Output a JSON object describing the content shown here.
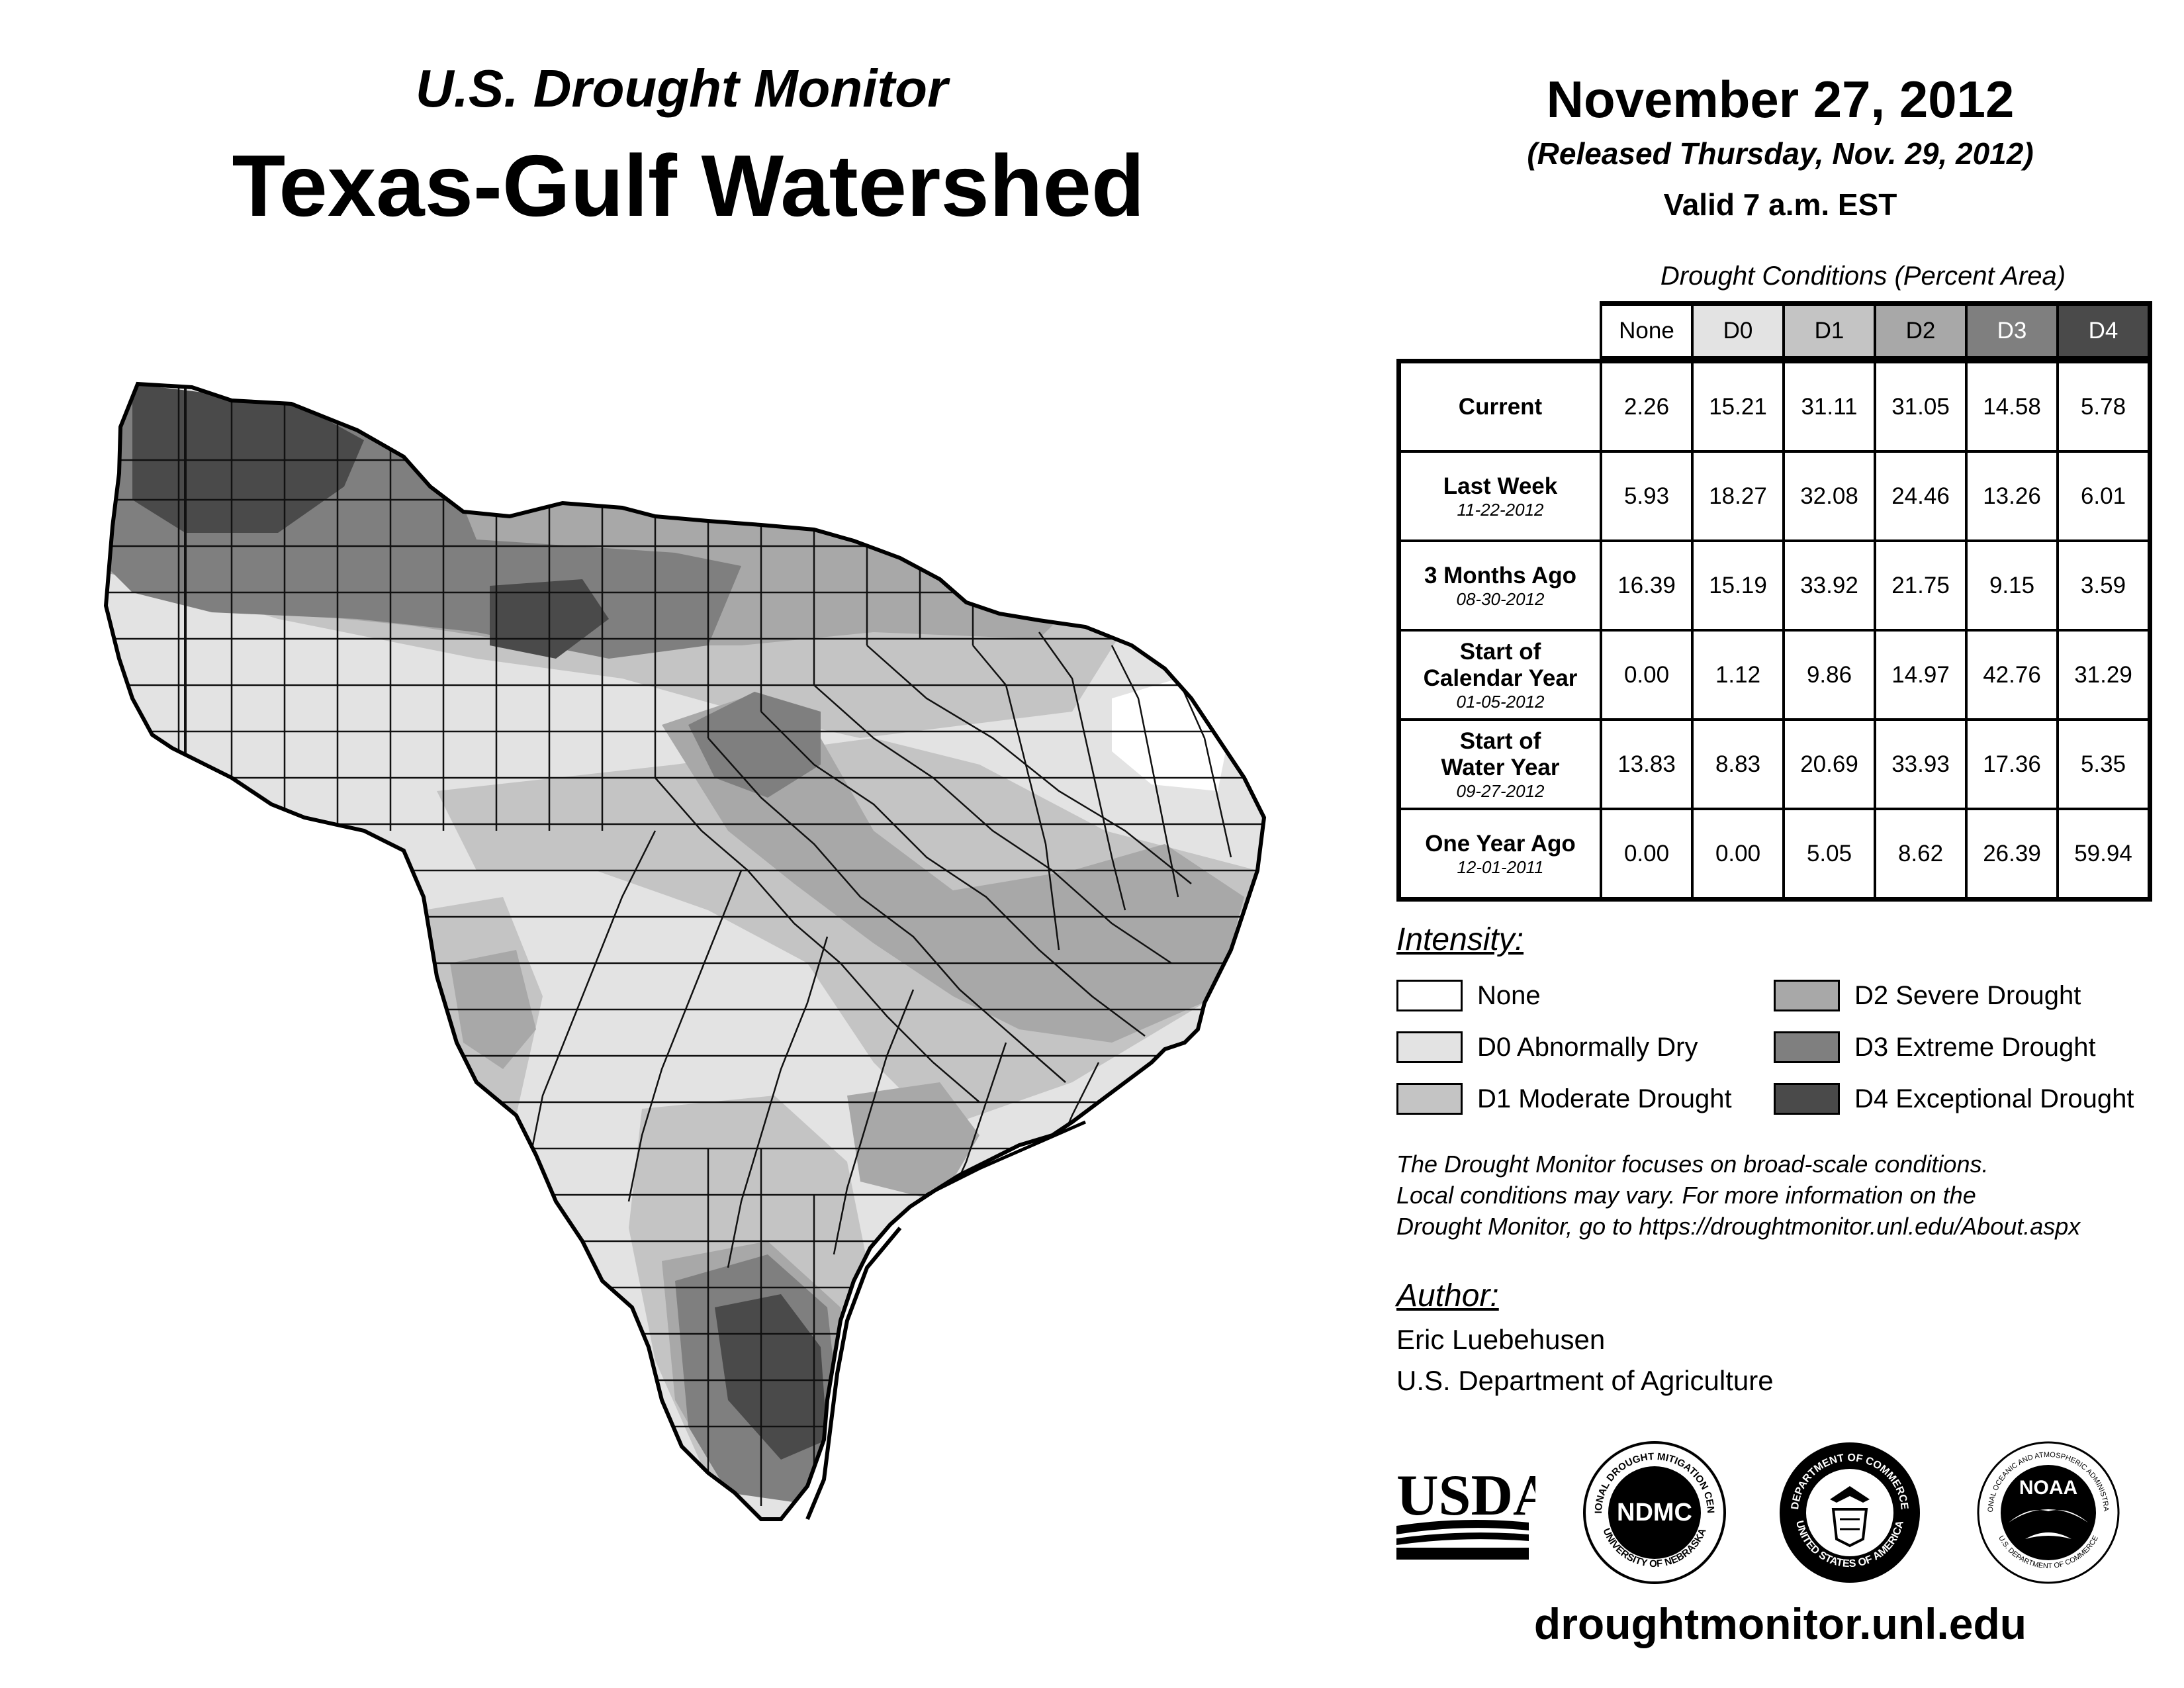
{
  "header": {
    "subtitle": "U.S. Drought Monitor",
    "title": "Texas-Gulf Watershed",
    "date": "November 27, 2012",
    "released": "(Released Thursday, Nov. 29, 2012)",
    "valid": "Valid 7 a.m. EST"
  },
  "table": {
    "caption": "Drought Conditions (Percent Area)",
    "columns": [
      "None",
      "D0",
      "D1",
      "D2",
      "D3",
      "D4"
    ],
    "rows": [
      {
        "label": "Current",
        "date": "",
        "values": [
          "2.26",
          "15.21",
          "31.11",
          "31.05",
          "14.58",
          "5.78"
        ]
      },
      {
        "label": "Last Week",
        "date": "11-22-2012",
        "values": [
          "5.93",
          "18.27",
          "32.08",
          "24.46",
          "13.26",
          "6.01"
        ]
      },
      {
        "label": "3 Months Ago",
        "date": "08-30-2012",
        "values": [
          "16.39",
          "15.19",
          "33.92",
          "21.75",
          "9.15",
          "3.59"
        ]
      },
      {
        "label": "Start of Calendar Year",
        "date": "01-05-2012",
        "values": [
          "0.00",
          "1.12",
          "9.86",
          "14.97",
          "42.76",
          "31.29"
        ]
      },
      {
        "label": "Start of Water Year",
        "date": "09-27-2012",
        "values": [
          "13.83",
          "8.83",
          "20.69",
          "33.93",
          "17.36",
          "5.35"
        ]
      },
      {
        "label": "One Year Ago",
        "date": "12-01-2011",
        "values": [
          "0.00",
          "0.00",
          "5.05",
          "8.62",
          "26.39",
          "59.94"
        ]
      }
    ]
  },
  "legend": {
    "heading": "Intensity:",
    "items": [
      {
        "label": "None",
        "color": "#ffffff"
      },
      {
        "label": "D0 Abnormally Dry",
        "color": "#e3e3e3"
      },
      {
        "label": "D1 Moderate Drought",
        "color": "#c4c4c4"
      },
      {
        "label": "D2 Severe Drought",
        "color": "#a8a8a8"
      },
      {
        "label": "D3 Extreme Drought",
        "color": "#7f7f7f"
      },
      {
        "label": "D4 Exceptional Drought",
        "color": "#4a4a4a"
      }
    ]
  },
  "note": {
    "line1": "The Drought Monitor focuses on broad-scale conditions.",
    "line2": "Local conditions may vary. For more information on the",
    "line3": "Drought Monitor, go to https://droughtmonitor.unl.edu/About.aspx"
  },
  "author": {
    "heading": "Author:",
    "name": "Eric Luebehusen",
    "org": "U.S. Department of Agriculture"
  },
  "logos": {
    "usda": "USDA",
    "ndmc": "NDMC",
    "ndmc_ring_top": "NATIONAL DROUGHT MITIGATION CENTER",
    "ndmc_ring_bottom": "UNIVERSITY OF NEBRASKA",
    "doc_ring_top": "DEPARTMENT OF COMMERCE",
    "doc_ring_bottom": "UNITED STATES OF AMERICA",
    "noaa": "NOAA",
    "noaa_ring_top": "NATIONAL OCEANIC AND ATMOSPHERIC ADMINISTRATION",
    "noaa_ring_bottom": "U.S. DEPARTMENT OF COMMERCE"
  },
  "website": "droughtmonitor.unl.edu"
}
